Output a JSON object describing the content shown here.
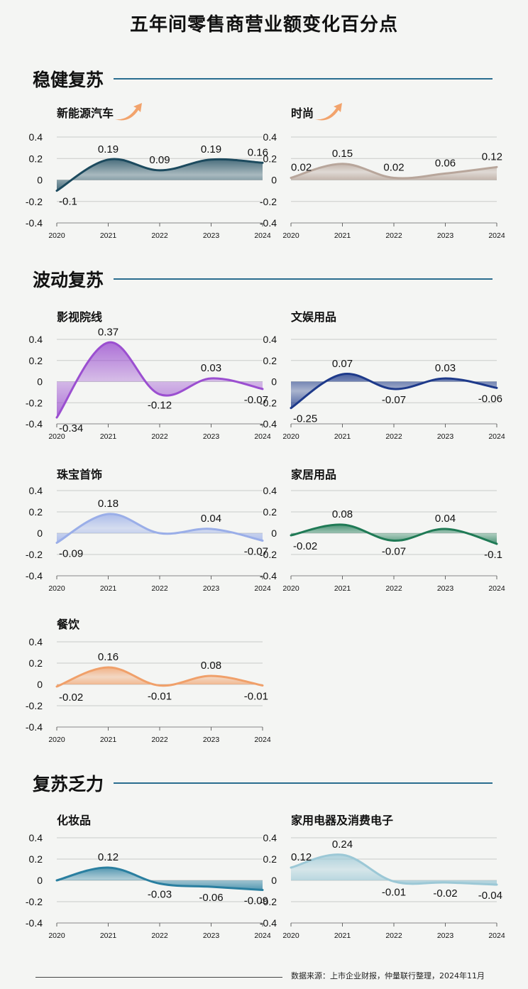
{
  "title": "五年间零售商营业额变化百分点",
  "sections": [
    {
      "label": "稳健复苏"
    },
    {
      "label": "波动复苏"
    },
    {
      "label": "复苏乏力"
    }
  ],
  "footer": {
    "source": "数据来源：上市企业财报，仲量联行整理，2024年11月"
  },
  "chart_data": [
    {
      "type": "area",
      "title": "新能源汽车",
      "x": [
        "2020",
        "2021",
        "2022",
        "2023",
        "2024"
      ],
      "values": [
        -0.1,
        0.19,
        0.09,
        0.19,
        0.16
      ],
      "labels": [
        "-0.1",
        "0.19",
        "0.09",
        "0.19",
        "0.16"
      ],
      "ylim": [
        -0.4,
        0.4
      ],
      "yticks": [
        "0.4",
        "0.2",
        "0",
        "-0.2",
        "-0.4"
      ],
      "color": "#1c4a5e",
      "trend": "up"
    },
    {
      "type": "area",
      "title": "时尚",
      "x": [
        "2020",
        "2021",
        "2022",
        "2023",
        "2024"
      ],
      "values": [
        0.02,
        0.15,
        0.02,
        0.06,
        0.12
      ],
      "labels": [
        "0.02",
        "0.15",
        "0.02",
        "0.06",
        "0.12"
      ],
      "ylim": [
        -0.4,
        0.4
      ],
      "yticks": [
        "0.4",
        "0.2",
        "0",
        "-0.2",
        "-0.4"
      ],
      "color": "#b8a69b",
      "trend": "up"
    },
    {
      "type": "area",
      "title": "影视院线",
      "x": [
        "2020",
        "2021",
        "2022",
        "2023",
        "2024"
      ],
      "values": [
        -0.34,
        0.37,
        -0.12,
        0.03,
        -0.07
      ],
      "labels": [
        "-0.34",
        "0.37",
        "-0.12",
        "0.03",
        "-0.07"
      ],
      "ylim": [
        -0.4,
        0.4
      ],
      "yticks": [
        "0.4",
        "0.2",
        "0",
        "-0.2",
        "-0.4"
      ],
      "color": "#9b4fd0"
    },
    {
      "type": "area",
      "title": "文娱用品",
      "x": [
        "2020",
        "2021",
        "2022",
        "2023",
        "2024"
      ],
      "values": [
        -0.25,
        0.07,
        -0.07,
        0.03,
        -0.06
      ],
      "labels": [
        "-0.25",
        "0.07",
        "-0.07",
        "0.03",
        "-0.06"
      ],
      "ylim": [
        -0.4,
        0.4
      ],
      "yticks": [
        "0.4",
        "0.2",
        "0",
        "-0.2",
        "-0.4"
      ],
      "color": "#1e3a8a"
    },
    {
      "type": "area",
      "title": "珠宝首饰",
      "x": [
        "2020",
        "2021",
        "2022",
        "2023",
        "2024"
      ],
      "values": [
        -0.09,
        0.18,
        0.0,
        0.04,
        -0.07
      ],
      "labels": [
        "-0.09",
        "0.18",
        "",
        "0.04",
        "-0.07"
      ],
      "ylim": [
        -0.4,
        0.4
      ],
      "yticks": [
        "0.4",
        "0.2",
        "0",
        "-0.2",
        "-0.4"
      ],
      "color": "#9aaee8"
    },
    {
      "type": "area",
      "title": "家居用品",
      "x": [
        "2020",
        "2021",
        "2022",
        "2023",
        "2024"
      ],
      "values": [
        -0.02,
        0.08,
        -0.07,
        0.04,
        -0.1
      ],
      "labels": [
        "-0.02",
        "0.08",
        "-0.07",
        "0.04",
        "-0.1"
      ],
      "ylim": [
        -0.4,
        0.4
      ],
      "yticks": [
        "0.4",
        "0.2",
        "0",
        "-0.2",
        "-0.4"
      ],
      "color": "#1f7a55"
    },
    {
      "type": "area",
      "title": "餐饮",
      "x": [
        "2020",
        "2021",
        "2022",
        "2023",
        "2024"
      ],
      "values": [
        -0.02,
        0.16,
        -0.01,
        0.08,
        -0.01
      ],
      "labels": [
        "-0.02",
        "0.16",
        "-0.01",
        "0.08",
        "-0.01"
      ],
      "ylim": [
        -0.4,
        0.4
      ],
      "yticks": [
        "0.4",
        "0.2",
        "0",
        "-0.2",
        "-0.4"
      ],
      "color": "#f0a06a"
    },
    {
      "type": "area",
      "title": "化妆品",
      "x": [
        "2020",
        "2021",
        "2022",
        "2023",
        "2024"
      ],
      "values": [
        0.0,
        0.12,
        -0.03,
        -0.06,
        -0.09
      ],
      "labels": [
        "",
        "0.12",
        "-0.03",
        "-0.06",
        "-0.09"
      ],
      "ylim": [
        -0.4,
        0.4
      ],
      "yticks": [
        "0.4",
        "0.2",
        "0",
        "-0.2",
        "-0.4"
      ],
      "color": "#2a7fa0"
    },
    {
      "type": "area",
      "title": "家用电器及消费电子",
      "x": [
        "2020",
        "2021",
        "2022",
        "2023",
        "2024"
      ],
      "values": [
        0.12,
        0.24,
        -0.01,
        -0.02,
        -0.04
      ],
      "labels": [
        "0.12",
        "0.24",
        "-0.01",
        "-0.02",
        "-0.04"
      ],
      "ylim": [
        -0.4,
        0.4
      ],
      "yticks": [
        "0.4",
        "0.2",
        "0",
        "-0.2",
        "-0.4"
      ],
      "color": "#9cc8d6"
    }
  ]
}
